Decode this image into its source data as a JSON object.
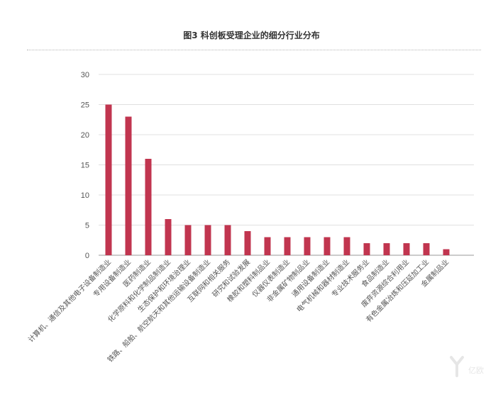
{
  "title": "图3 科创板受理企业的细分行业分布",
  "watermark": "亿欧",
  "colors": {
    "bar": "#c1354f",
    "grid": "#e0e0e0",
    "axis": "#9a9a9a",
    "text": "#555555"
  },
  "chart_data": {
    "type": "bar",
    "title": "图3 科创板受理企业的细分行业分布",
    "xlabel": "",
    "ylabel": "",
    "ylim": [
      0,
      30
    ],
    "yticks": [
      0,
      5,
      10,
      15,
      20,
      25,
      30
    ],
    "grid": true,
    "categories": [
      "计算机、通信及其他电子设备制造业",
      "专用设备制造业",
      "医药制造业",
      "化学原料和化学制品制造业",
      "生态保护和环境治理业",
      "铁路、船舶、航空航天和其他运输设备制造业",
      "互联网和相关服务",
      "研究和试验发展",
      "橡胶和塑料制品业",
      "仪器仪表制造业",
      "非金属矿物制品业",
      "通用设备制造业",
      "电气机械和器材制造业",
      "专业技术服务业",
      "食品制造业",
      "废弃资源综合利用业",
      "有色金属冶炼和压延加工业",
      "金属制品业"
    ],
    "values": [
      25,
      23,
      16,
      6,
      5,
      5,
      5,
      4,
      3,
      3,
      3,
      3,
      3,
      2,
      2,
      2,
      2,
      1
    ]
  }
}
